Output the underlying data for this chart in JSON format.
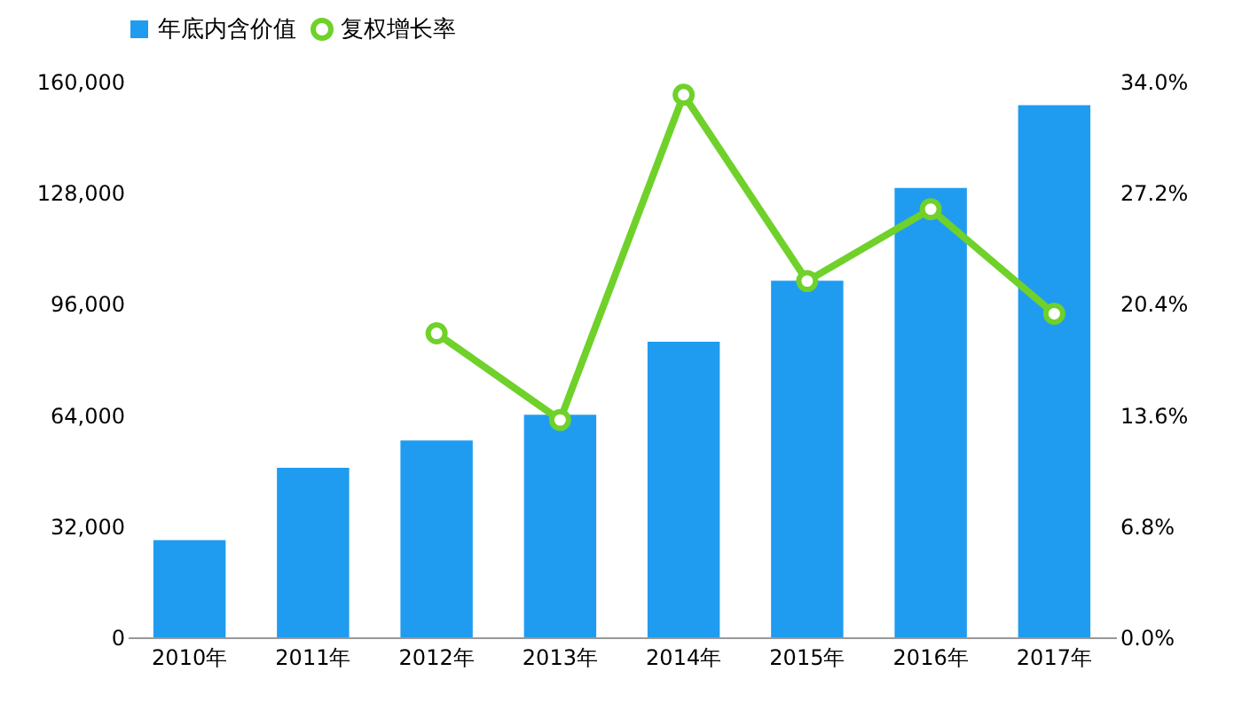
{
  "chart_data": {
    "type": "bar",
    "categories": [
      "2010年",
      "2011年",
      "2012年",
      "2013年",
      "2014年",
      "2015年",
      "2016年",
      "2017年"
    ],
    "series": [
      {
        "name": "年底内含价值",
        "color": "#1f9cf0",
        "values": [
          28000,
          48800,
          56700,
          64100,
          85100,
          102700,
          129400,
          153200
        ]
      },
      {
        "name": "复权增长率",
        "type": "line",
        "axis": "y2",
        "color": "#6fd12a",
        "marker": "circle",
        "values": [
          null,
          null,
          18.6,
          13.3,
          33.2,
          21.8,
          26.2,
          19.8
        ]
      }
    ],
    "ylim": [
      0,
      160000
    ],
    "yticks": [
      0,
      {
        "value": 32000,
        "label": "32,000"
      },
      {
        "value": 64000,
        "label": "64,000"
      },
      {
        "value": 96000,
        "label": "96,000"
      },
      {
        "value": 128000,
        "label": "128,000"
      },
      {
        "value": 160000,
        "label": "160,000"
      }
    ],
    "y2lim": [
      0,
      34
    ],
    "y2ticks": [
      {
        "value": 0,
        "label": "0.0%"
      },
      {
        "value": 6.8,
        "label": "6.8%"
      },
      {
        "value": 13.6,
        "label": "13.6%"
      },
      {
        "value": 20.4,
        "label": "20.4%"
      },
      {
        "value": 27.2,
        "label": "27.2%"
      },
      {
        "value": 34,
        "label": "34.0%"
      }
    ],
    "legend": "top"
  }
}
